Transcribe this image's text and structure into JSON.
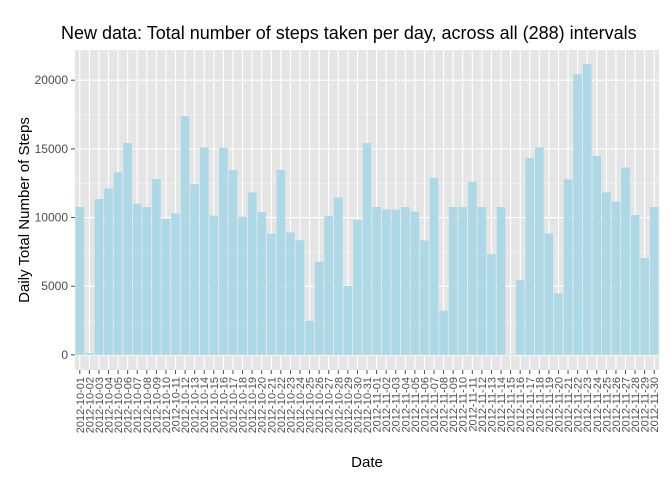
{
  "chart_data": {
    "type": "bar",
    "title": "New data: Total number of steps taken per day, across all (288) intervals",
    "xlabel": "Date",
    "ylabel": "Daily Total Number of Steps",
    "ylim": [
      -1100,
      22200
    ],
    "yticks": [
      0,
      5000,
      10000,
      15000,
      20000
    ],
    "grid": true,
    "bar_color": "#add8e6",
    "panel_color": "#e5e5e5",
    "categories": [
      "2012-10-01",
      "2012-10-02",
      "2012-10-03",
      "2012-10-04",
      "2012-10-05",
      "2012-10-06",
      "2012-10-07",
      "2012-10-08",
      "2012-10-09",
      "2012-10-10",
      "2012-10-11",
      "2012-10-12",
      "2012-10-13",
      "2012-10-14",
      "2012-10-15",
      "2012-10-16",
      "2012-10-17",
      "2012-10-18",
      "2012-10-19",
      "2012-10-20",
      "2012-10-21",
      "2012-10-22",
      "2012-10-23",
      "2012-10-24",
      "2012-10-25",
      "2012-10-26",
      "2012-10-27",
      "2012-10-28",
      "2012-10-29",
      "2012-10-30",
      "2012-10-31",
      "2012-11-01",
      "2012-11-02",
      "2012-11-03",
      "2012-11-04",
      "2012-11-05",
      "2012-11-06",
      "2012-11-07",
      "2012-11-08",
      "2012-11-09",
      "2012-11-10",
      "2012-11-11",
      "2012-11-12",
      "2012-11-13",
      "2012-11-14",
      "2012-11-15",
      "2012-11-16",
      "2012-11-17",
      "2012-11-18",
      "2012-11-19",
      "2012-11-20",
      "2012-11-21",
      "2012-11-22",
      "2012-11-23",
      "2012-11-24",
      "2012-11-25",
      "2012-11-26",
      "2012-11-27",
      "2012-11-28",
      "2012-11-29",
      "2012-11-30"
    ],
    "values": [
      10766,
      126,
      11352,
      12116,
      13294,
      15420,
      11015,
      10766,
      12811,
      9900,
      10304,
      17382,
      12426,
      15098,
      10139,
      15084,
      13452,
      10056,
      11829,
      10395,
      8821,
      13460,
      8918,
      8355,
      2492,
      6778,
      10119,
      11458,
      5018,
      9819,
      15414,
      10766,
      10600,
      10571,
      10766,
      10439,
      8334,
      12883,
      3219,
      10766,
      10766,
      12608,
      10765,
      7336,
      10766,
      41,
      5441,
      14339,
      15110,
      8841,
      4472,
      12787,
      20427,
      21194,
      14478,
      11834,
      11162,
      13646,
      10183,
      7047,
      10766
    ]
  }
}
